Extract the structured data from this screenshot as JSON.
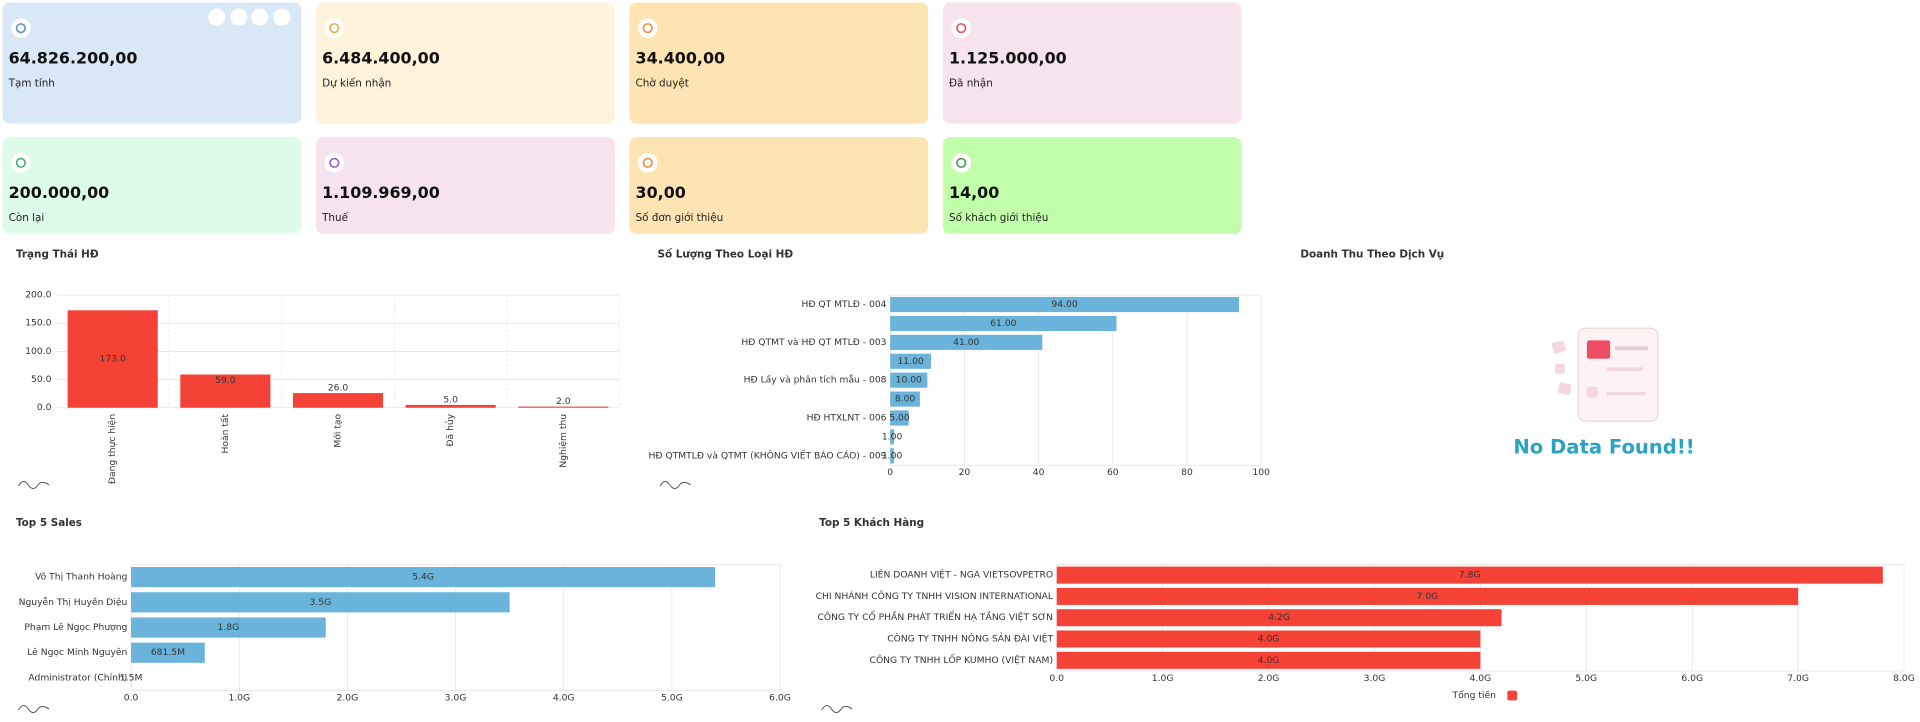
{
  "cards": [
    {
      "value": "64.826.200,00",
      "label": "Tạm tính",
      "color": "#d9e8f6",
      "icon": "#5b8fc7"
    },
    {
      "value": "6.484.400,00",
      "label": "Dự kiến nhận",
      "color": "#fff3dc",
      "icon": "#e8a93a"
    },
    {
      "value": "34.400,00",
      "label": "Chờ duyệt",
      "color": "#fde4b2",
      "icon": "#e8903a"
    },
    {
      "value": "1.125.000,00",
      "label": "Đã nhận",
      "color": "#f6e3ee",
      "icon": "#e0506a"
    },
    {
      "value": "200.000,00",
      "label": "Còn lại",
      "color": "#defbea",
      "icon": "#3fb57a"
    },
    {
      "value": "1.109.969,00",
      "label": "Thuế",
      "color": "#f6e3ee",
      "icon": "#9a5bc7"
    },
    {
      "value": "30,00",
      "label": "Số đơn giới thiệu",
      "color": "#fde4b2",
      "icon": "#e8903a"
    },
    {
      "value": "14,00",
      "label": "Số khách giới thiệu",
      "color": "#c2ffaa",
      "icon": "#3f9a55"
    }
  ],
  "chart_data": [
    {
      "type": "bar",
      "title": "Trạng Thái HĐ",
      "color": "#f44336",
      "categories": [
        "Đang thực hiện",
        "Hoàn tất",
        "Mới tạo",
        "Đã hủy",
        "Nghiệm thu"
      ],
      "values": [
        173,
        59,
        26,
        5,
        2
      ],
      "value_labels": [
        "173.0",
        "59.0",
        "26.0",
        "5.0",
        "2.0"
      ],
      "ylim": [
        0,
        200
      ],
      "yticks": [
        {
          "value": 0,
          "label": "0.0"
        },
        {
          "value": 50,
          "label": "50.0"
        },
        {
          "value": 100,
          "label": "100.0"
        },
        {
          "value": 150,
          "label": "150.0"
        },
        {
          "value": 200,
          "label": "200.0"
        }
      ],
      "grid": true
    },
    {
      "type": "barh",
      "title": "Số Lượng Theo Loại HĐ",
      "color": "#6ab4dc",
      "categories": [
        "HĐ QT MTLĐ - 004",
        null,
        "HĐ QTMT và HĐ QT MTLĐ - 003",
        null,
        "HĐ Lấy và phân tích mẫu - 008",
        null,
        "HĐ HTXLNT - 006",
        null,
        "HĐ QTMTLĐ và QTMT (KHÔNG VIẾT BÁO CÁO) - 009"
      ],
      "values": [
        94,
        61,
        41,
        11,
        10,
        8,
        5,
        1,
        1
      ],
      "value_labels": [
        "94.00",
        "61.00",
        "41.00",
        "11.00",
        "10.00",
        "8.00",
        "5.00",
        "1.00",
        "1.00"
      ],
      "xlim": [
        0,
        100
      ],
      "xticks": [
        0,
        20,
        40,
        60,
        80,
        100
      ],
      "grid": true
    },
    {
      "type": "empty",
      "title": "Doanh Thu Theo Dịch Vụ",
      "message": "No Data Found!!"
    },
    {
      "type": "barh",
      "title": "Top 5 Sales",
      "color": "#6ab4dc",
      "categories": [
        "Võ Thị Thanh Hoàng",
        "Nguyễn Thị Huyền Diệu",
        "Phạm Lê Ngọc Phượng",
        "Lê Ngọc Minh Nguyên",
        "Administrator (Chính)"
      ],
      "values": [
        5400000000,
        3500000000,
        1800000000,
        681500000,
        1500000
      ],
      "value_labels": [
        "5.4G",
        "3.5G",
        "1.8G",
        "681.5M",
        "1.5M"
      ],
      "xlim": [
        0,
        6000000000
      ],
      "xticks": [
        {
          "value": 0,
          "label": "0.0"
        },
        {
          "value": 1000000000,
          "label": "1.0G"
        },
        {
          "value": 2000000000,
          "label": "2.0G"
        },
        {
          "value": 3000000000,
          "label": "3.0G"
        },
        {
          "value": 4000000000,
          "label": "4.0G"
        },
        {
          "value": 5000000000,
          "label": "5.0G"
        },
        {
          "value": 6000000000,
          "label": "6.0G"
        }
      ],
      "grid": true
    },
    {
      "type": "barh",
      "title": "Top 5 Khách Hàng",
      "color": "#f44336",
      "categories": [
        "LIÊN DOANH VIỆT - NGA VIETSOVPETRO",
        "CHI NHÁNH CÔNG TY TNHH VISION INTERNATIONAL",
        "CÔNG TY CỔ PHẦN PHÁT TRIỂN HẠ TẦNG VIỆT SƠN",
        "CÔNG TY TNHH NÔNG SẢN ĐÀI VIỆT",
        "CÔNG TY TNHH LỐP KUMHO (VIỆT NAM)"
      ],
      "series_name": "Tổng tiền",
      "values": [
        7800000000,
        7000000000,
        4200000000,
        4000000000,
        4000000000
      ],
      "value_labels": [
        "7.8G",
        "7.0G",
        "4.2G",
        "4.0G",
        "4.0G"
      ],
      "xlim": [
        0,
        8000000000
      ],
      "xticks": [
        {
          "value": 0,
          "label": "0.0"
        },
        {
          "value": 1000000000,
          "label": "1.0G"
        },
        {
          "value": 2000000000,
          "label": "2.0G"
        },
        {
          "value": 3000000000,
          "label": "3.0G"
        },
        {
          "value": 4000000000,
          "label": "4.0G"
        },
        {
          "value": 5000000000,
          "label": "5.0G"
        },
        {
          "value": 6000000000,
          "label": "6.0G"
        },
        {
          "value": 7000000000,
          "label": "7.0G"
        },
        {
          "value": 8000000000,
          "label": "8.0G"
        }
      ],
      "grid": true,
      "legend": "bottom"
    }
  ]
}
